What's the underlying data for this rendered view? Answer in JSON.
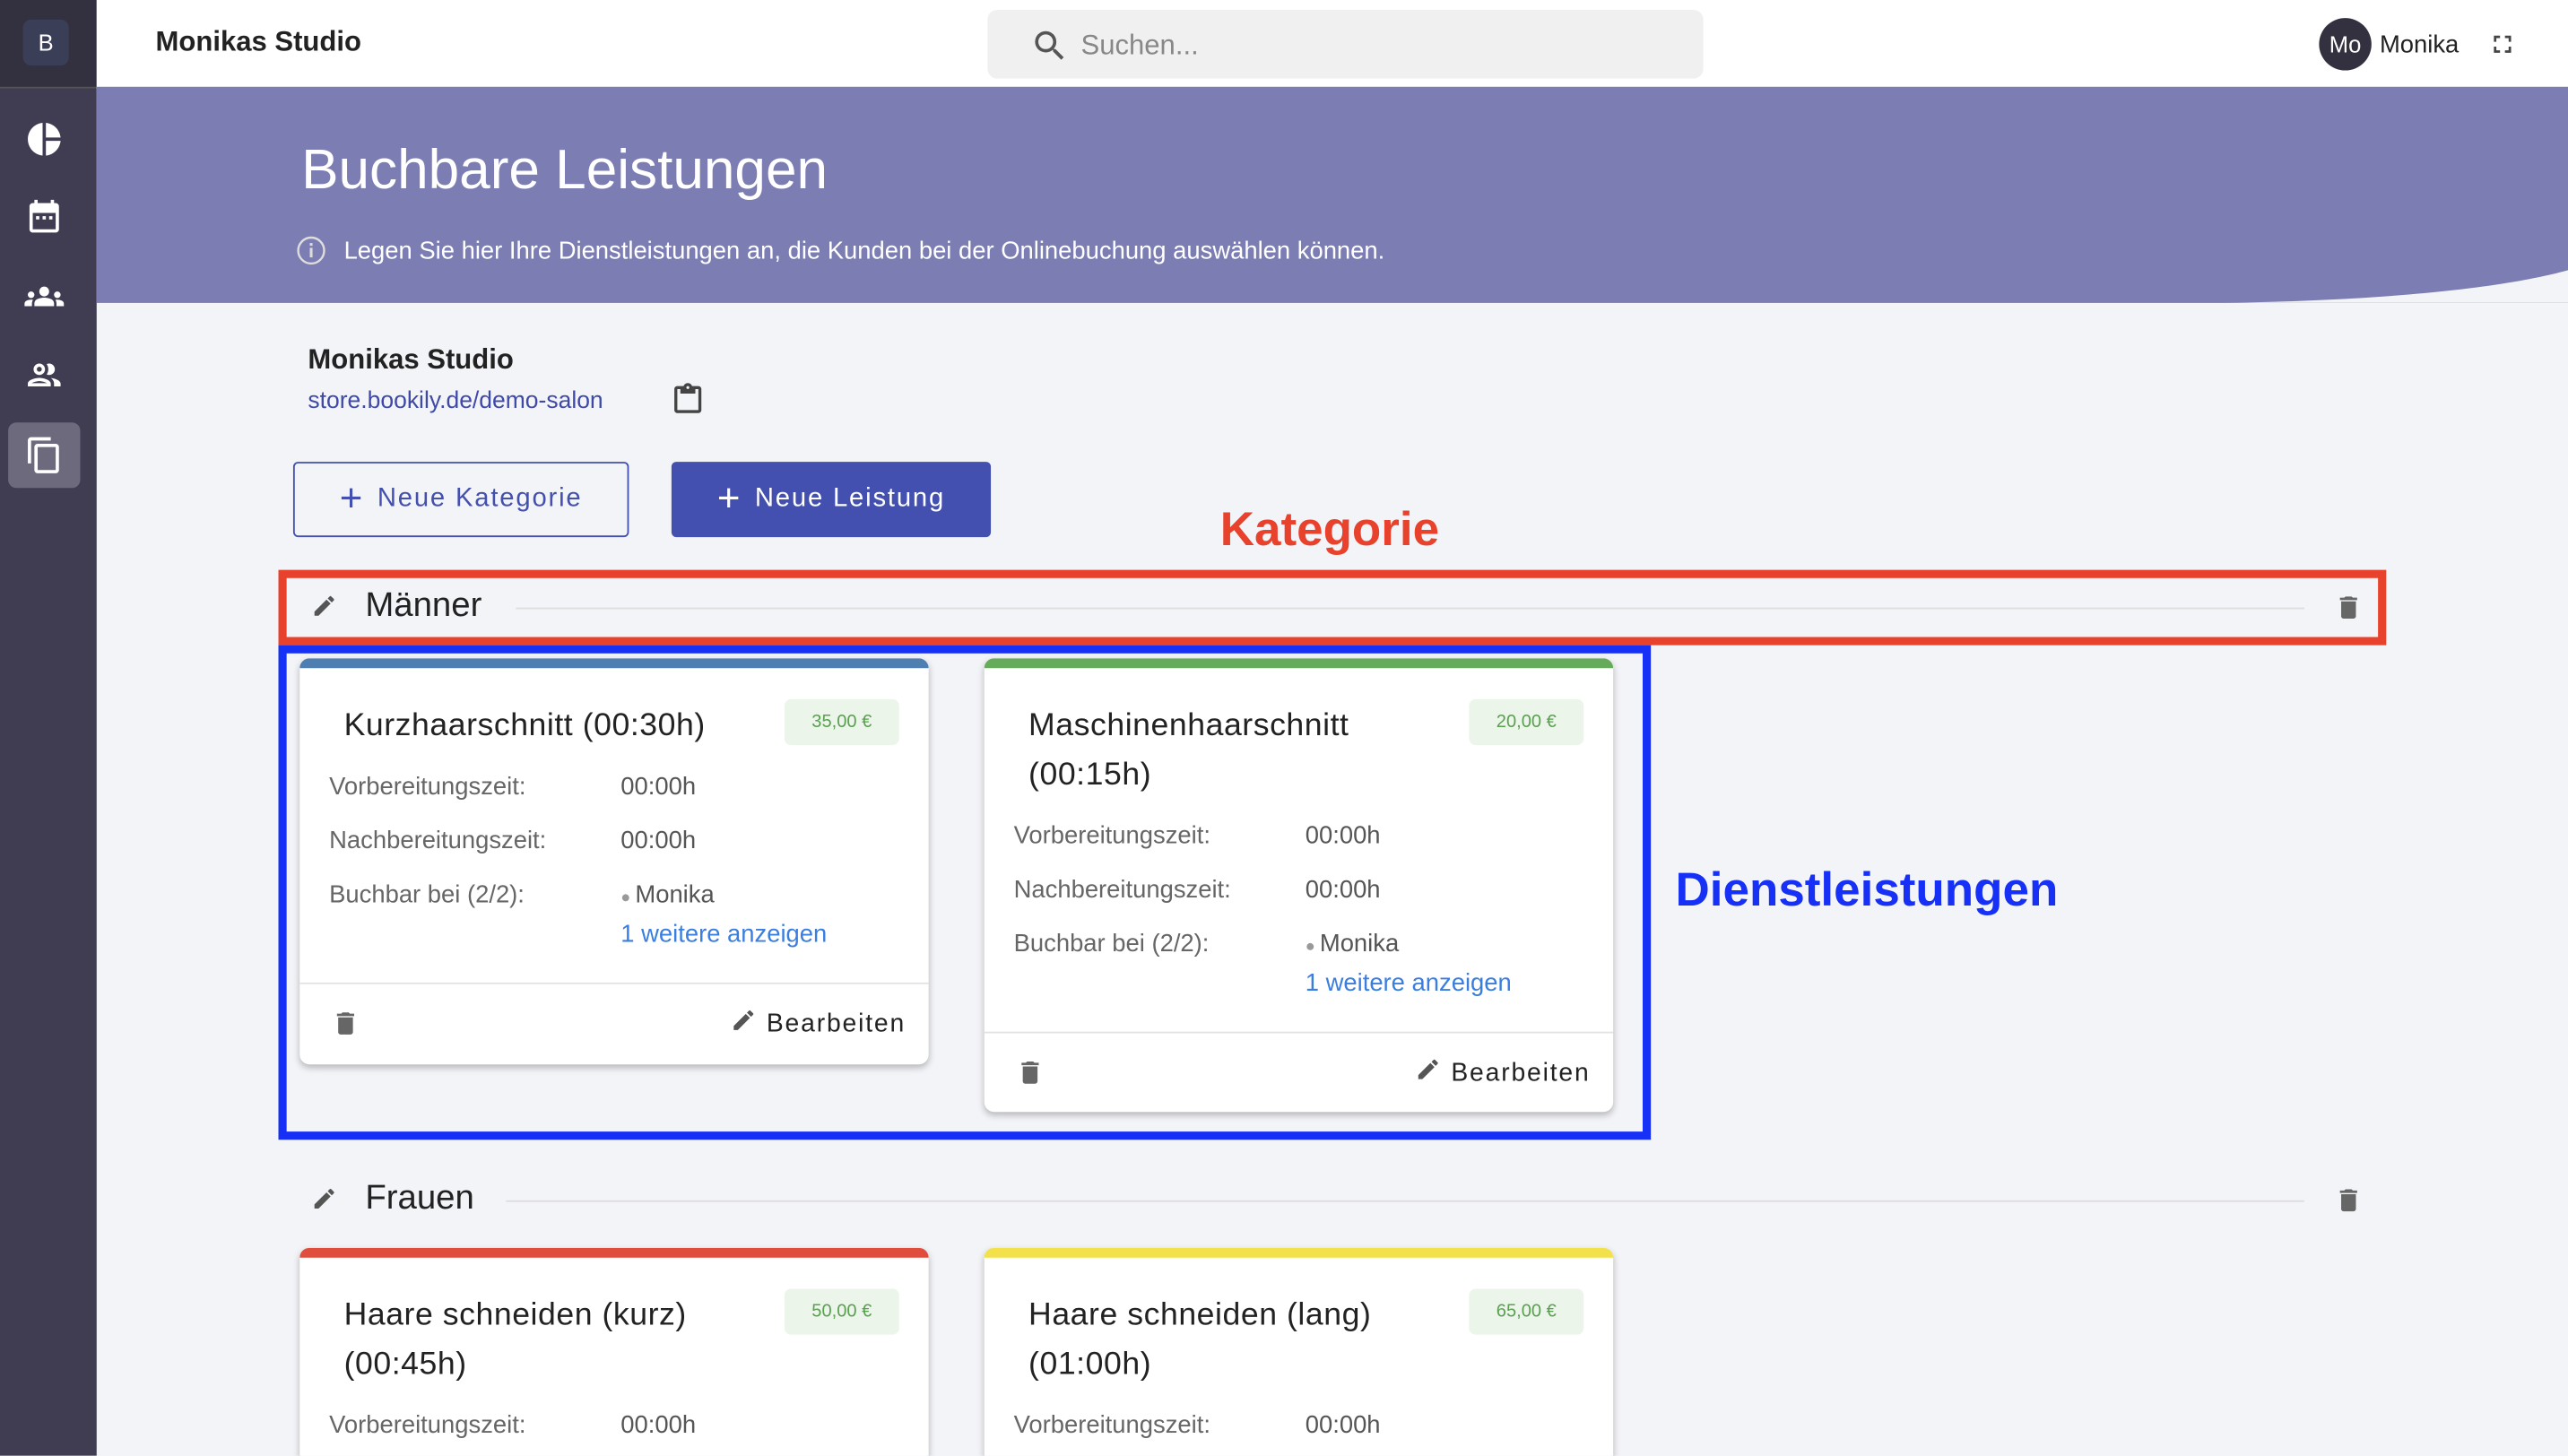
{
  "sidebar": {
    "logo": "B",
    "items": [
      {
        "icon": "pie-chart-icon",
        "active": false
      },
      {
        "icon": "calendar-icon",
        "active": false
      },
      {
        "icon": "customers-icon",
        "active": false
      },
      {
        "icon": "staff-icon",
        "active": false
      },
      {
        "icon": "services-icon",
        "active": true
      }
    ]
  },
  "topbar": {
    "title": "Monikas Studio",
    "search_placeholder": "Suchen...",
    "avatar_initials": "Mo",
    "user_name": "Monika"
  },
  "hero": {
    "title": "Buchbare Leistungen",
    "info": "Legen Sie hier Ihre Dienstleistungen an, die Kunden bei der Onlinebuchung auswählen können."
  },
  "studio": {
    "name": "Monikas Studio",
    "link": "store.bookily.de/demo-salon"
  },
  "buttons": {
    "new_category": "Neue Kategorie",
    "new_service": "Neue Leistung"
  },
  "annotations": {
    "category": "Kategorie",
    "services": "Dienstleistungen",
    "category_color": "#e8412c",
    "services_color": "#1631f5"
  },
  "labels": {
    "prep": "Vorbereitungszeit:",
    "post": "Nachbereitungszeit:",
    "bookable": "Buchbar bei (2/2):",
    "edit": "Bearbeiten"
  },
  "categories": [
    {
      "name": "Männer",
      "services": [
        {
          "title": "Kurzhaarschnitt (00:30h)",
          "price": "35,00 €",
          "color": "#4f7fb0",
          "prep": "00:00h",
          "post": "00:00h",
          "staff": "Monika",
          "more": "1 weitere anzeigen"
        },
        {
          "title": "Maschinenhaarschnitt (00:15h)",
          "price": "20,00 €",
          "color": "#66ab5b",
          "prep": "00:00h",
          "post": "00:00h",
          "staff": "Monika",
          "more": "1 weitere anzeigen"
        }
      ]
    },
    {
      "name": "Frauen",
      "services": [
        {
          "title": "Haare schneiden (kurz) (00:45h)",
          "price": "50,00 €",
          "color": "#e04d3c",
          "prep": "00:00h"
        },
        {
          "title": "Haare schneiden (lang) (01:00h)",
          "price": "65,00 €",
          "color": "#f2e14a",
          "prep": "00:00h"
        }
      ]
    }
  ]
}
